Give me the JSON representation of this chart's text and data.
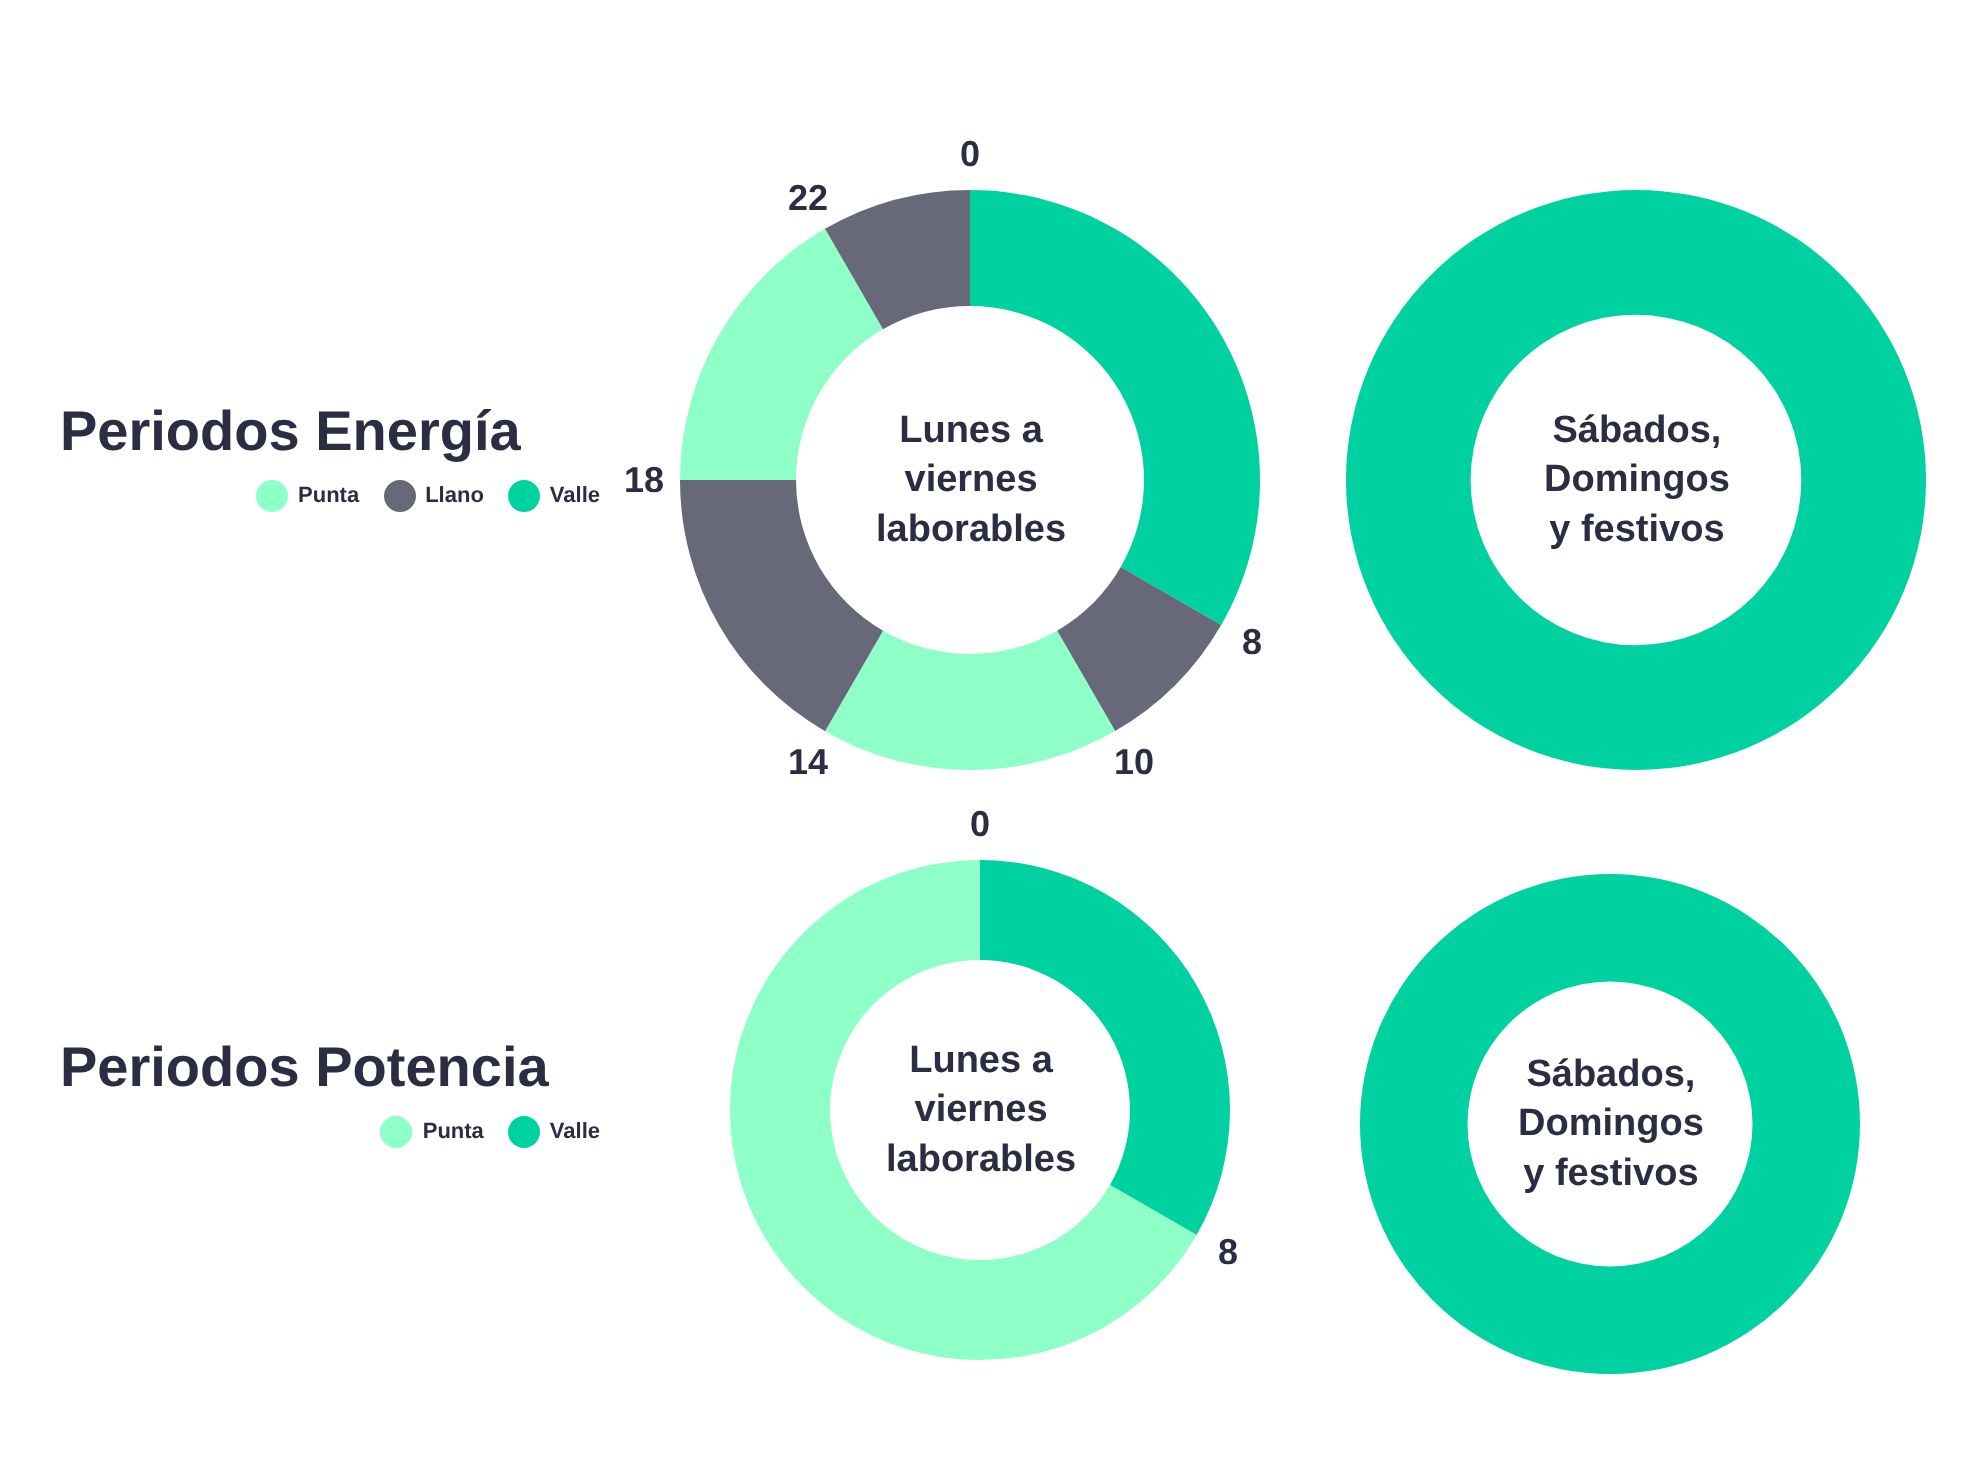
{
  "chart_data": [
    {
      "type": "donut",
      "legend_title": "Periodos Energía",
      "title": "Lunes a\nviernes\nlaborables",
      "legend": "left",
      "categories": [
        "Valle",
        "Llano",
        "Punta",
        null,
        null,
        null
      ],
      "values": [
        33.33,
        8.33,
        16.67,
        16.67,
        16.67,
        8.33
      ],
      "colors": [
        "#00d1a0",
        "#676878",
        "#8effc6",
        "#676878",
        "#8effc6",
        "#676878"
      ],
      "annotations": [
        "0",
        "8",
        "10",
        "14",
        "18",
        "22"
      ]
    },
    {
      "type": "pie",
      "title": "Sábados,\nDomingos\ny festivos",
      "categories": [
        null
      ],
      "values": [
        100
      ],
      "colors": [
        "#00d1a0"
      ]
    },
    {
      "type": "donut",
      "legend_title": "Periodos Potencia",
      "title": "Lunes a\nviernes\nlaborables",
      "legend": "left",
      "categories": [
        "Valle",
        "Punta"
      ],
      "values": [
        33.33,
        66.67
      ],
      "colors": [
        "#00d1a0",
        "#8effc6"
      ],
      "annotations": [
        "0",
        "8"
      ]
    },
    {
      "type": "pie",
      "title": "Sábados,\nDomingos\ny festivos",
      "categories": [
        null
      ],
      "values": [
        100
      ],
      "colors": [
        "#00d1a0"
      ]
    }
  ]
}
